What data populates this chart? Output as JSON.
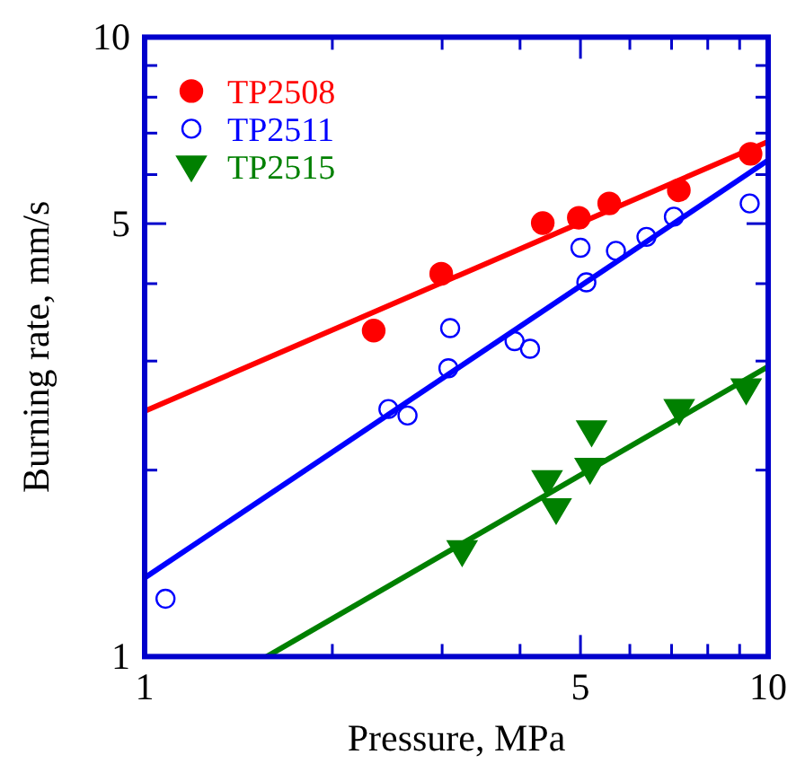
{
  "chart_data": {
    "type": "scatter",
    "xlabel": "Pressure, MPa",
    "ylabel": "Burning rate, mm/s",
    "log": "xy",
    "xlim": [
      1,
      10
    ],
    "ylim": [
      1,
      10
    ],
    "xticks": [
      1,
      {
        "value": 2,
        "label": null
      },
      {
        "value": 3,
        "label": null
      },
      {
        "value": 4,
        "label": null
      },
      5,
      {
        "value": 6,
        "label": null
      },
      {
        "value": 7,
        "label": null
      },
      {
        "value": 8,
        "label": null
      },
      {
        "value": 9,
        "label": null
      },
      10
    ],
    "yticks": [
      1,
      {
        "value": 2,
        "label": null
      },
      {
        "value": 3,
        "label": null
      },
      {
        "value": 4,
        "label": null
      },
      5,
      {
        "value": 6,
        "label": null
      },
      {
        "value": 7,
        "label": null
      },
      {
        "value": 8,
        "label": null
      },
      {
        "value": 9,
        "label": null
      },
      10
    ],
    "grid": false,
    "legend": "top left",
    "series": [
      {
        "name": "TP2508",
        "color": "#ff0000",
        "marker": "circle",
        "x": [
          2.33,
          2.99,
          4.35,
          4.97,
          5.56,
          7.19,
          9.37
        ],
        "values": [
          3.36,
          4.15,
          5.01,
          5.11,
          5.39,
          5.66,
          6.48
        ]
      },
      {
        "name": "TP2511",
        "color": "#0000ff",
        "marker": "circle",
        "x": [
          1.08,
          2.46,
          2.64,
          3.07,
          3.09,
          3.92,
          4.15,
          5.0,
          5.11,
          5.7,
          6.38,
          7.06,
          9.34
        ],
        "values": [
          1.24,
          2.51,
          2.45,
          2.92,
          3.39,
          3.23,
          3.14,
          4.57,
          4.02,
          4.52,
          4.76,
          5.13,
          5.39
        ]
      },
      {
        "name": "TP2515",
        "color": "#008000",
        "marker": "triangle",
        "x": [
          3.23,
          4.42,
          4.57,
          5.18,
          5.21,
          7.2,
          9.22
        ],
        "values": [
          1.48,
          1.92,
          1.73,
          2.01,
          2.31,
          2.5,
          2.7
        ]
      },
      {
        "type": "line",
        "color": "#ff0000",
        "line_style": "solid",
        "x": [
          1,
          10
        ],
        "values": [
          2.49,
          6.78
        ]
      },
      {
        "type": "line",
        "color": "#0000ff",
        "line_style": "solid",
        "x": [
          1,
          10
        ],
        "values": [
          1.34,
          6.33
        ]
      },
      {
        "type": "line",
        "color": "#008000",
        "line_style": "solid",
        "x": [
          1.57,
          10
        ],
        "values": [
          1,
          2.94
        ]
      }
    ]
  }
}
